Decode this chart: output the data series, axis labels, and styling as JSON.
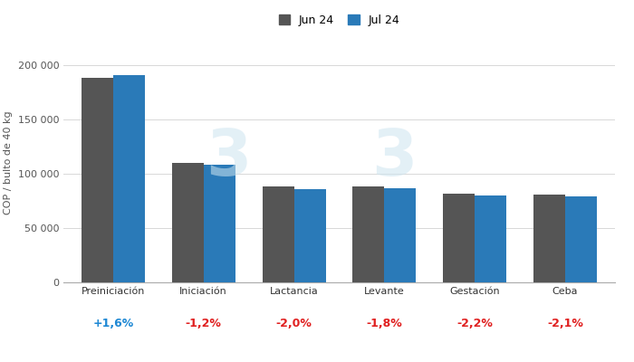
{
  "categories": [
    "Preiniciación",
    "Iniciación",
    "Lactancia",
    "Levante",
    "Gestación",
    "Ceba"
  ],
  "jun_values": [
    188000,
    110000,
    88000,
    88500,
    82000,
    81000
  ],
  "jul_values": [
    191008,
    108680,
    86240,
    86910,
    80196,
    79299
  ],
  "variations": [
    "+1,6%",
    "-1,2%",
    "-2,0%",
    "-1,8%",
    "-2,2%",
    "-2,1%"
  ],
  "variation_colors": [
    "#1e88d4",
    "#e02020",
    "#e02020",
    "#e02020",
    "#e02020",
    "#e02020"
  ],
  "jun_color": "#555555",
  "jul_color": "#2a7ab8",
  "ylabel": "COP / bulto de 40 kg",
  "ylim": [
    0,
    220000
  ],
  "yticks": [
    0,
    50000,
    100000,
    150000,
    200000
  ],
  "ytick_labels": [
    "0",
    "50 000",
    "100 000",
    "150 000",
    "200 000"
  ],
  "legend_jun": "Jun 24",
  "legend_jul": "Jul 24",
  "background_color": "#ffffff",
  "grid_color": "#d8d8d8",
  "bar_width": 0.35,
  "fontsize_ticks": 8,
  "fontsize_ylabel": 8,
  "fontsize_variation": 9,
  "fontsize_legend": 9
}
